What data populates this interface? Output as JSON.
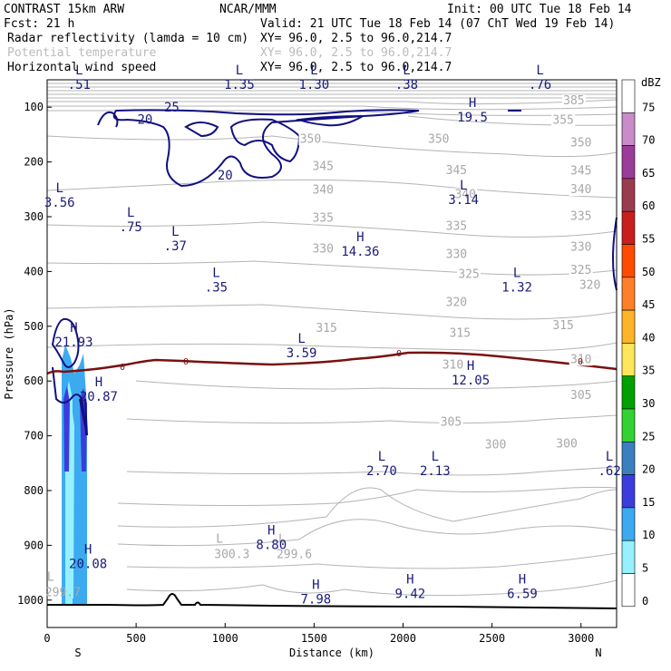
{
  "header": {
    "model": "CONTRAST 15km ARW",
    "org": "NCAR/MMM",
    "init": "Init: 00 UTC Tue 18 Feb 14",
    "fcst": "Fcst:    21 h",
    "valid": "Valid: 21 UTC Tue 18 Feb 14 (07 ChT Wed 19 Feb 14)",
    "fields": [
      {
        "name": "Radar reflectivity (lamda = 10 cm)",
        "xy": "XY=  96.0,  2.5 to  96.0,214.7",
        "color": "#000000"
      },
      {
        "name": "Potential temperature",
        "xy": "XY=  96.0,  2.5 to  96.0,214.7",
        "color": "#bbbbbb"
      },
      {
        "name": "Horizontal wind speed",
        "xy": "XY=  96.0,  2.5 to  96.0,214.7",
        "color": "#1a1a7a"
      }
    ]
  },
  "chart_data": {
    "type": "cross-section",
    "xlabel": "Distance (km)",
    "ylabel": "Pressure (hPa)",
    "xlim": [
      0,
      3200
    ],
    "ylim": [
      1050,
      50
    ],
    "x_ticks": [
      0,
      500,
      1000,
      1500,
      2000,
      2500,
      3000
    ],
    "y_ticks": [
      100,
      200,
      300,
      400,
      500,
      600,
      700,
      800,
      900,
      1000
    ],
    "x_end_labels": [
      "S",
      "N"
    ],
    "colorbar": {
      "title": "dBZ",
      "levels": [
        "75",
        "70",
        "65",
        "60",
        "55",
        "50",
        "45",
        "40",
        "35",
        "30",
        "25",
        "20",
        "15",
        "10",
        "5",
        "0"
      ],
      "colors": [
        "#ffffff",
        "#c88cc8",
        "#9a3c9a",
        "#9a3c50",
        "#c81e1e",
        "#ff4b00",
        "#ff7f28",
        "#ffb428",
        "#ffe65a",
        "#00a000",
        "#32d232",
        "#3c7fbe",
        "#3c3cdc",
        "#3caaf0",
        "#96f0ff",
        "#ffffff"
      ]
    },
    "theta_labels": [
      {
        "v": "385",
        "x": 2960,
        "p": 95
      },
      {
        "v": "355",
        "x": 2900,
        "p": 130
      },
      {
        "v": "350",
        "x": 2200,
        "p": 165
      },
      {
        "v": "350",
        "x": 1480,
        "p": 165
      },
      {
        "v": "350",
        "x": 3000,
        "p": 172
      },
      {
        "v": "345",
        "x": 1550,
        "p": 215
      },
      {
        "v": "345",
        "x": 2300,
        "p": 222
      },
      {
        "v": "345",
        "x": 3000,
        "p": 223
      },
      {
        "v": "340",
        "x": 1550,
        "p": 258
      },
      {
        "v": "340",
        "x": 2350,
        "p": 266
      },
      {
        "v": "340",
        "x": 3000,
        "p": 257
      },
      {
        "v": "335",
        "x": 1550,
        "p": 309
      },
      {
        "v": "335",
        "x": 2300,
        "p": 324
      },
      {
        "v": "335",
        "x": 3000,
        "p": 306
      },
      {
        "v": "330",
        "x": 1550,
        "p": 365
      },
      {
        "v": "330",
        "x": 2300,
        "p": 375
      },
      {
        "v": "330",
        "x": 3000,
        "p": 362
      },
      {
        "v": "325",
        "x": 2370,
        "p": 412
      },
      {
        "v": "325",
        "x": 3000,
        "p": 404
      },
      {
        "v": "320",
        "x": 3050,
        "p": 432
      },
      {
        "v": "320",
        "x": 2300,
        "p": 463
      },
      {
        "v": "315",
        "x": 1570,
        "p": 510
      },
      {
        "v": "315",
        "x": 2320,
        "p": 519
      },
      {
        "v": "315",
        "x": 2900,
        "p": 505
      },
      {
        "v": "310",
        "x": 2280,
        "p": 577
      },
      {
        "v": "310",
        "x": 3000,
        "p": 567
      },
      {
        "v": "305",
        "x": 2270,
        "p": 682
      },
      {
        "v": "305",
        "x": 3000,
        "p": 633
      },
      {
        "v": "300",
        "x": 2520,
        "p": 723
      },
      {
        "v": "300",
        "x": 2920,
        "p": 721
      }
    ],
    "theta_extrema": [
      {
        "t": "L",
        "v": "300.3",
        "x": 1000,
        "p": 895
      },
      {
        "t": "L",
        "v": "299.6",
        "x": 1350,
        "p": 895
      },
      {
        "t": "L",
        "v": "299.7",
        "x": 50,
        "p": 965
      }
    ],
    "wind_labels": [
      {
        "v": "20",
        "x": 550,
        "p": 130
      },
      {
        "v": "25",
        "x": 700,
        "p": 108
      },
      {
        "v": "20",
        "x": 1000,
        "p": 232
      }
    ],
    "wind_extrema": [
      {
        "t": "L",
        "v": ".51",
        "x": 180,
        "p": 40
      },
      {
        "t": "L",
        "v": "1.35",
        "x": 1080,
        "p": 40
      },
      {
        "t": "L",
        "v": "1.30",
        "x": 1500,
        "p": 40
      },
      {
        "t": "L",
        "v": ".38",
        "x": 2020,
        "p": 40
      },
      {
        "t": "L",
        "v": ".76",
        "x": 2770,
        "p": 40
      },
      {
        "t": "H",
        "v": "19.5",
        "x": 2390,
        "p": 100
      },
      {
        "t": "L",
        "v": "3.56",
        "x": 70,
        "p": 255
      },
      {
        "t": "L",
        "v": ".75",
        "x": 470,
        "p": 300
      },
      {
        "t": "L",
        "v": ".37",
        "x": 720,
        "p": 335
      },
      {
        "t": "L",
        "v": ".35",
        "x": 950,
        "p": 410
      },
      {
        "t": "L",
        "v": "3.14",
        "x": 2340,
        "p": 250
      },
      {
        "t": "H",
        "v": "14.36",
        "x": 1760,
        "p": 345
      },
      {
        "t": "L",
        "v": "1.32",
        "x": 2640,
        "p": 410
      },
      {
        "t": "H",
        "v": "21.93",
        "x": 150,
        "p": 510
      },
      {
        "t": "L",
        "v": "3.59",
        "x": 1430,
        "p": 530
      },
      {
        "t": "H",
        "v": "20.87",
        "x": 290,
        "p": 610
      },
      {
        "t": "H",
        "v": "12.05",
        "x": 2380,
        "p": 580
      },
      {
        "t": "L",
        "v": "2.70",
        "x": 1880,
        "p": 745
      },
      {
        "t": "L",
        "v": "2.13",
        "x": 2180,
        "p": 745
      },
      {
        "t": "L",
        "v": ".62",
        "x": 3160,
        "p": 745
      },
      {
        "t": "H",
        "v": "8.80",
        "x": 1260,
        "p": 880
      },
      {
        "t": "H",
        "v": "20.08",
        "x": 230,
        "p": 915
      },
      {
        "t": "H",
        "v": "7.98",
        "x": 1510,
        "p": 980
      },
      {
        "t": "H",
        "v": "9.42",
        "x": 2040,
        "p": 970
      },
      {
        "t": "H",
        "v": "6.59",
        "x": 2670,
        "p": 970
      }
    ],
    "freezing_level_label": "0"
  }
}
